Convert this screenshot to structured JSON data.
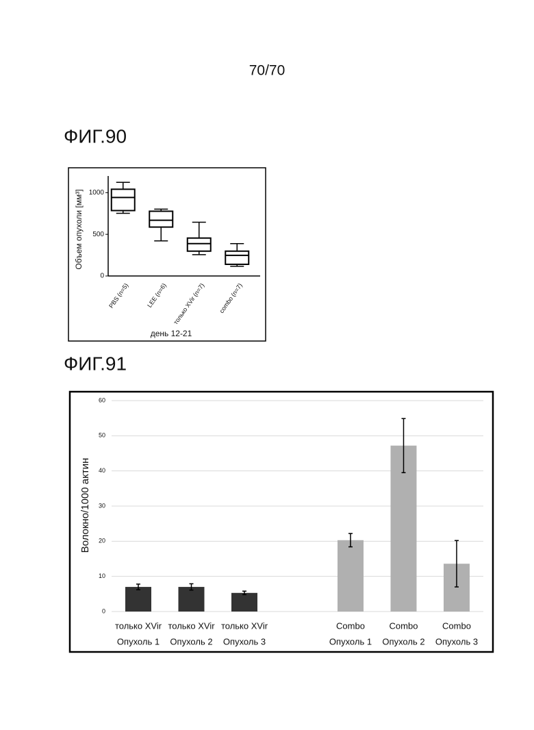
{
  "page_number": "70/70",
  "chart_data": [
    {
      "type": "box",
      "figure_label": "ФИГ.90",
      "ylabel": "Объем опухоли [мм³]",
      "xlabel": "день 12-21",
      "categories": [
        "PBS (n=5)",
        "LEE (n=6)",
        "только XVir (n=7)",
        "combo (n=7)"
      ],
      "min": [
        752,
        421,
        256,
        116
      ],
      "q1": [
        785,
        587,
        298,
        140
      ],
      "median": [
        942,
        669,
        388,
        248
      ],
      "q3": [
        1041,
        777,
        455,
        298
      ],
      "max": [
        1124,
        802,
        645,
        388
      ],
      "color": "#000000",
      "ylim": [
        0,
        1200
      ],
      "yticks": [
        0,
        500,
        1000
      ]
    },
    {
      "type": "bar",
      "figure_label": "ФИГ.91",
      "ylabel": "Волокно/1000 актин",
      "categories": [
        [
          "только XVir",
          "Опухоль 1"
        ],
        [
          "только XVir",
          "Опухоль 2"
        ],
        [
          "только XVir",
          "Опухоль 3"
        ],
        null,
        [
          "Combo",
          "Опухоль 1"
        ],
        [
          "Combo",
          "Опухоль 2"
        ],
        [
          "Combo",
          "Опухоль 3"
        ]
      ],
      "values": [
        7.0,
        7.0,
        5.3,
        null,
        20.3,
        47.2,
        13.6
      ],
      "errors": [
        0.8,
        0.9,
        0.5,
        null,
        1.9,
        7.7,
        6.6
      ],
      "colors": [
        "#333333",
        "#333333",
        "#333333",
        null,
        "#b0b0b0",
        "#b0b0b0",
        "#b0b0b0"
      ],
      "ylim": [
        0,
        60
      ],
      "yticks": [
        0,
        10,
        20,
        30,
        40,
        50,
        60
      ],
      "grid": true
    }
  ]
}
